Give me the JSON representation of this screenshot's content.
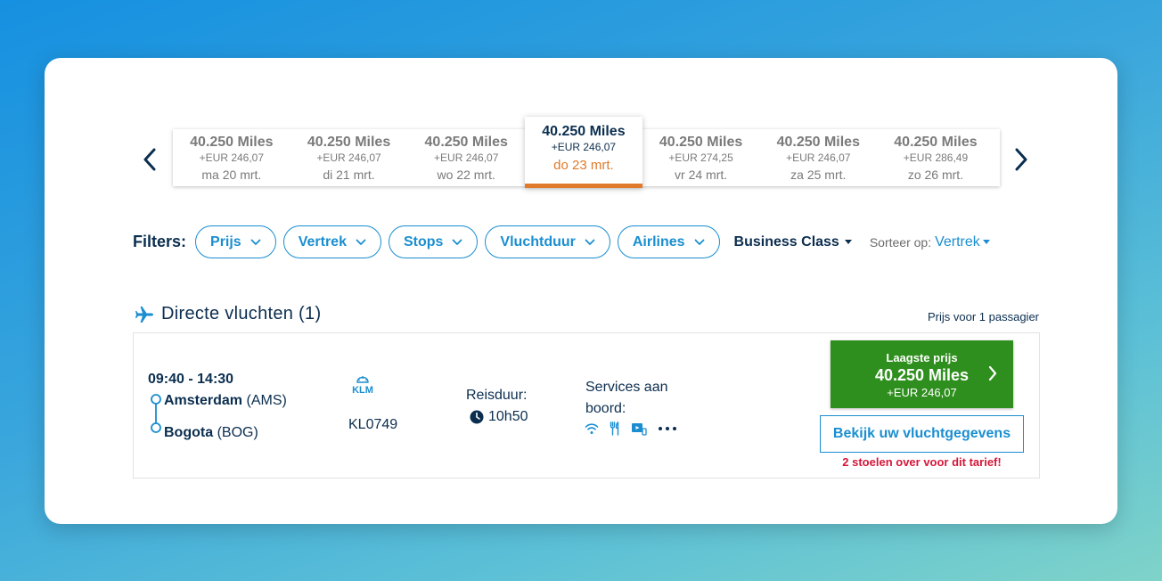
{
  "dates": [
    {
      "miles": "40.250 Miles",
      "eur": "+EUR 246,07",
      "day": "ma 20 mrt.",
      "active": false
    },
    {
      "miles": "40.250 Miles",
      "eur": "+EUR 246,07",
      "day": "di 21 mrt.",
      "active": false
    },
    {
      "miles": "40.250 Miles",
      "eur": "+EUR 246,07",
      "day": "wo 22 mrt.",
      "active": false
    },
    {
      "miles": "40.250 Miles",
      "eur": "+EUR 246,07",
      "day": "do 23 mrt.",
      "active": true
    },
    {
      "miles": "40.250 Miles",
      "eur": "+EUR 274,25",
      "day": "vr 24 mrt.",
      "active": false
    },
    {
      "miles": "40.250 Miles",
      "eur": "+EUR 246,07",
      "day": "za 25 mrt.",
      "active": false
    },
    {
      "miles": "40.250 Miles",
      "eur": "+EUR 286,49",
      "day": "zo 26 mrt.",
      "active": false
    }
  ],
  "filters": {
    "label": "Filters:",
    "chips": [
      "Prijs",
      "Vertrek",
      "Stops",
      "Vluchtduur",
      "Airlines"
    ],
    "cabin_class": "Business Class",
    "sort_label": "Sorteer op:",
    "sort_value": "Vertrek"
  },
  "section": {
    "title": "Directe vluchten (1)",
    "price_note": "Prijs voor 1 passagier"
  },
  "flight": {
    "times": "09:40 - 14:30",
    "departure_city": "Amsterdam",
    "departure_code": "(AMS)",
    "arrival_city": "Bogota",
    "arrival_code": "(BOG)",
    "airline_logo_text": "KLM",
    "flight_number": "KL0749",
    "duration_label": "Reisduur:",
    "duration": "10h50",
    "services_label": "Services aan boord:",
    "services_icons": [
      "wifi-icon",
      "meal-icon",
      "entertainment-icon",
      "more-icon"
    ],
    "price_label": "Laagste prijs",
    "price_miles": "40.250 Miles",
    "price_eur": "+EUR 246,07",
    "details_button": "Bekijk uw vluchtgegevens",
    "seats_warning": "2 stoelen over voor dit tarief!"
  },
  "colors": {
    "accent_blue": "#1a8ed0",
    "dark_navy": "#0b2e4f",
    "active_orange": "#e07a2a",
    "price_green": "#2f8f1e",
    "warning_red": "#d6173a"
  }
}
